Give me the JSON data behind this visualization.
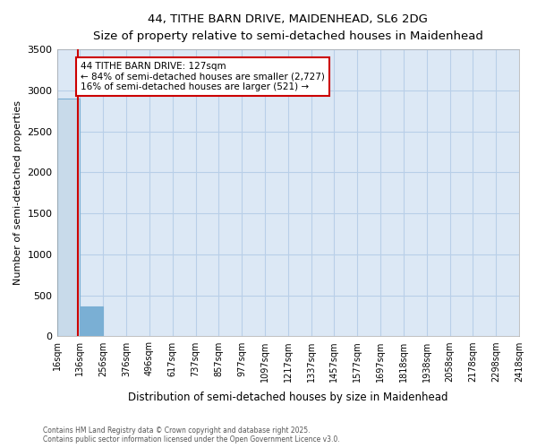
{
  "title_line1": "44, TITHE BARN DRIVE, MAIDENHEAD, SL6 2DG",
  "title_line2": "Size of property relative to semi-detached houses in Maidenhead",
  "xlabel": "Distribution of semi-detached houses by size in Maidenhead",
  "ylabel": "Number of semi-detached properties",
  "annotation_title": "44 TITHE BARN DRIVE: 127sqm",
  "annotation_line2": "← 84% of semi-detached houses are smaller (2,727)",
  "annotation_line3": "16% of semi-detached houses are larger (521) →",
  "footer_line1": "Contains HM Land Registry data © Crown copyright and database right 2025.",
  "footer_line2": "Contains public sector information licensed under the Open Government Licence v3.0.",
  "bins": [
    "16sqm",
    "136sqm",
    "256sqm",
    "376sqm",
    "496sqm",
    "617sqm",
    "737sqm",
    "857sqm",
    "977sqm",
    "1097sqm",
    "1217sqm",
    "1337sqm",
    "1457sqm",
    "1577sqm",
    "1697sqm",
    "1818sqm",
    "1938sqm",
    "2058sqm",
    "2178sqm",
    "2298sqm",
    "2418sqm"
  ],
  "bin_edges": [
    16,
    136,
    256,
    376,
    496,
    617,
    737,
    857,
    977,
    1097,
    1217,
    1337,
    1457,
    1577,
    1697,
    1818,
    1938,
    2058,
    2178,
    2298,
    2418
  ],
  "bar_heights": [
    2900,
    370,
    0,
    0,
    0,
    0,
    0,
    0,
    0,
    0,
    0,
    0,
    0,
    0,
    0,
    0,
    0,
    0,
    0,
    0
  ],
  "bar_color_main": "#c8daea",
  "bar_color_highlight": "#7aafd4",
  "property_size": 127,
  "property_line_color": "#cc0000",
  "ylim": [
    0,
    3500
  ],
  "yticks": [
    0,
    500,
    1000,
    1500,
    2000,
    2500,
    3000,
    3500
  ],
  "plot_bg_color": "#dce8f5",
  "fig_bg_color": "#ffffff",
  "grid_color": "#b8cfe8",
  "annotation_box_color": "#cc0000",
  "annotation_box_fill": "#ffffff",
  "bar_edge_color": "#7aafd4"
}
